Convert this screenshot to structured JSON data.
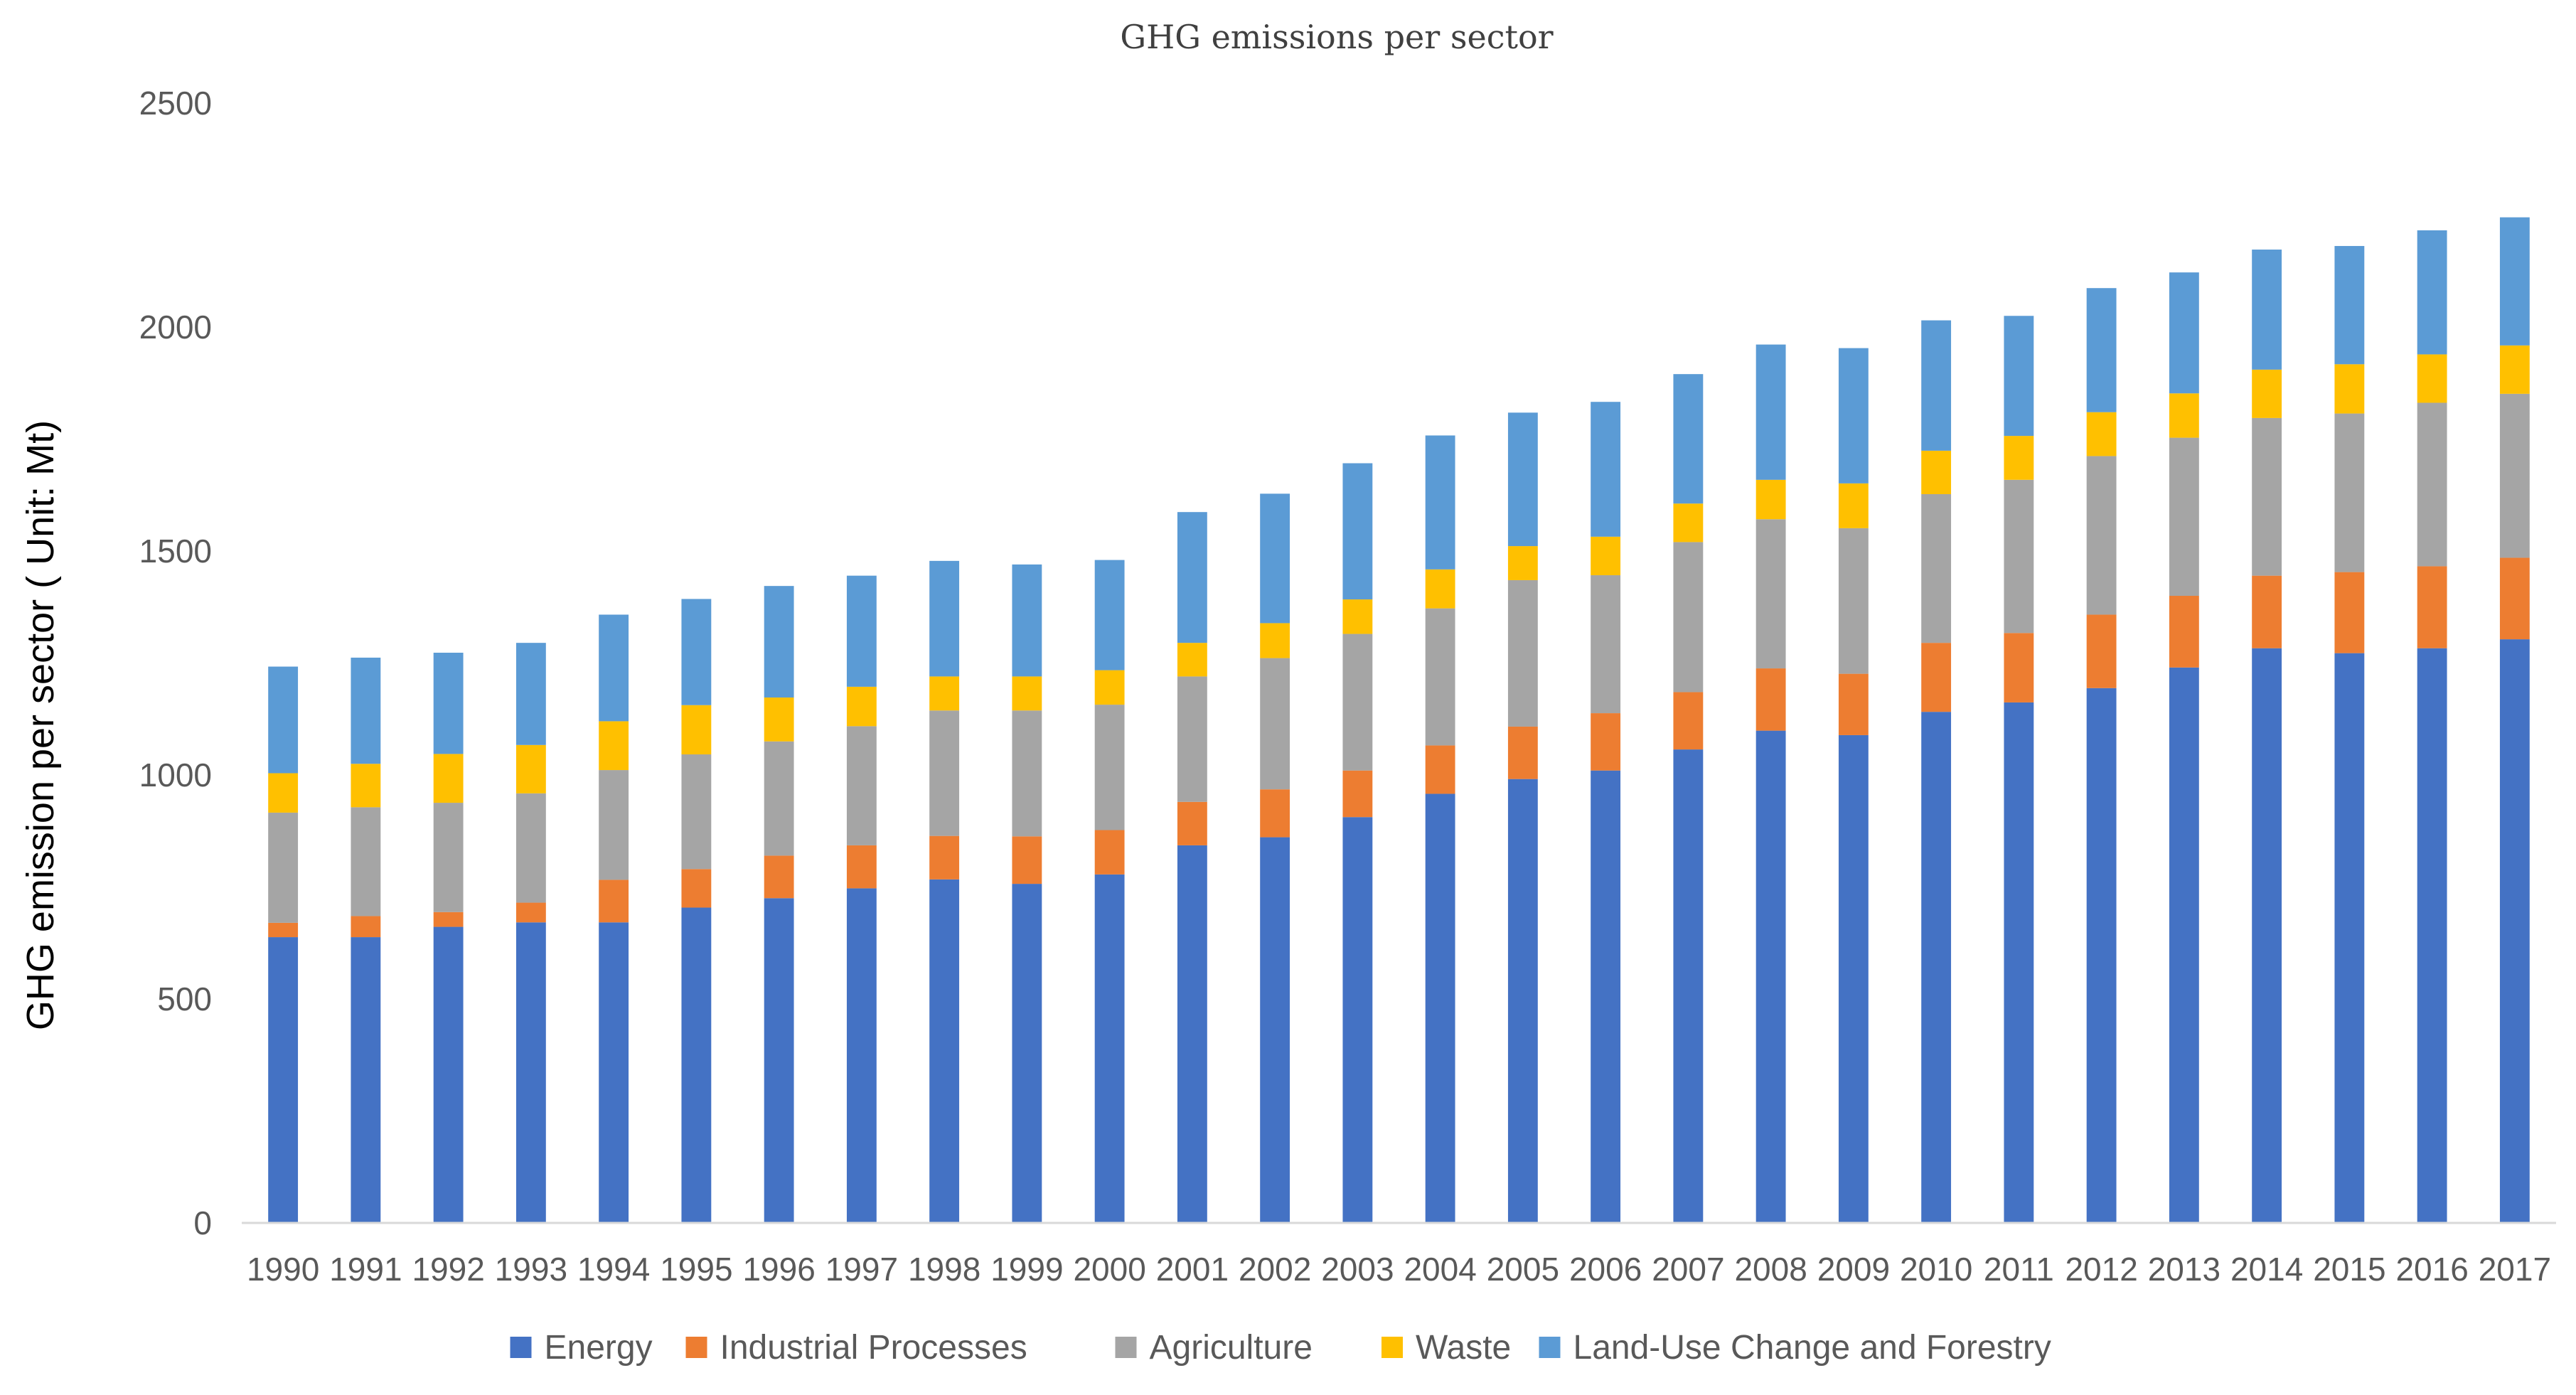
{
  "chart_data": {
    "type": "bar",
    "stacked": true,
    "title": "GHG emissions per sector",
    "xlabel": "",
    "ylabel": "GHG emission per sector ( Unit: Mt)",
    "ylim": [
      0,
      2500
    ],
    "yticks": [
      0,
      500,
      1000,
      1500,
      2000,
      2500
    ],
    "grid": false,
    "legend_position": "bottom",
    "categories": [
      "1990",
      "1991",
      "1992",
      "1993",
      "1994",
      "1995",
      "1996",
      "1997",
      "1998",
      "1999",
      "2000",
      "2001",
      "2002",
      "2003",
      "2004",
      "2005",
      "2006",
      "2007",
      "2008",
      "2009",
      "2010",
      "2011",
      "2012",
      "2013",
      "2014",
      "2015",
      "2016",
      "2017"
    ],
    "series": [
      {
        "name": "Energy",
        "color": "#4472C4",
        "values": [
          638,
          638,
          661,
          671,
          671,
          704,
          725,
          747,
          767,
          757,
          778,
          843,
          861,
          906,
          958,
          991,
          1010,
          1057,
          1099,
          1089,
          1141,
          1162,
          1194,
          1240,
          1283,
          1272,
          1283,
          1303
        ]
      },
      {
        "name": "Industrial Processes",
        "color": "#ED7D31",
        "values": [
          32,
          47,
          33,
          44,
          95,
          86,
          95,
          96,
          97,
          106,
          99,
          97,
          107,
          104,
          108,
          117,
          128,
          128,
          139,
          137,
          154,
          155,
          164,
          160,
          162,
          181,
          183,
          182
        ]
      },
      {
        "name": "Agriculture",
        "color": "#A5A5A5",
        "values": [
          246,
          243,
          244,
          244,
          245,
          256,
          255,
          266,
          280,
          281,
          280,
          280,
          293,
          305,
          306,
          327,
          308,
          335,
          333,
          325,
          332,
          342,
          354,
          353,
          352,
          354,
          365,
          366
        ]
      },
      {
        "name": "Waste",
        "color": "#FFC000",
        "values": [
          88,
          97,
          109,
          108,
          109,
          110,
          98,
          88,
          76,
          76,
          77,
          75,
          78,
          77,
          87,
          76,
          86,
          86,
          88,
          100,
          97,
          98,
          98,
          99,
          108,
          110,
          108,
          108
        ]
      },
      {
        "name": "Land-Use Change and Forestry",
        "color": "#5B9BD5",
        "values": [
          238,
          237,
          226,
          228,
          238,
          237,
          249,
          248,
          258,
          250,
          246,
          292,
          289,
          304,
          299,
          298,
          301,
          289,
          302,
          302,
          291,
          268,
          277,
          270,
          268,
          264,
          277,
          286
        ]
      }
    ]
  }
}
